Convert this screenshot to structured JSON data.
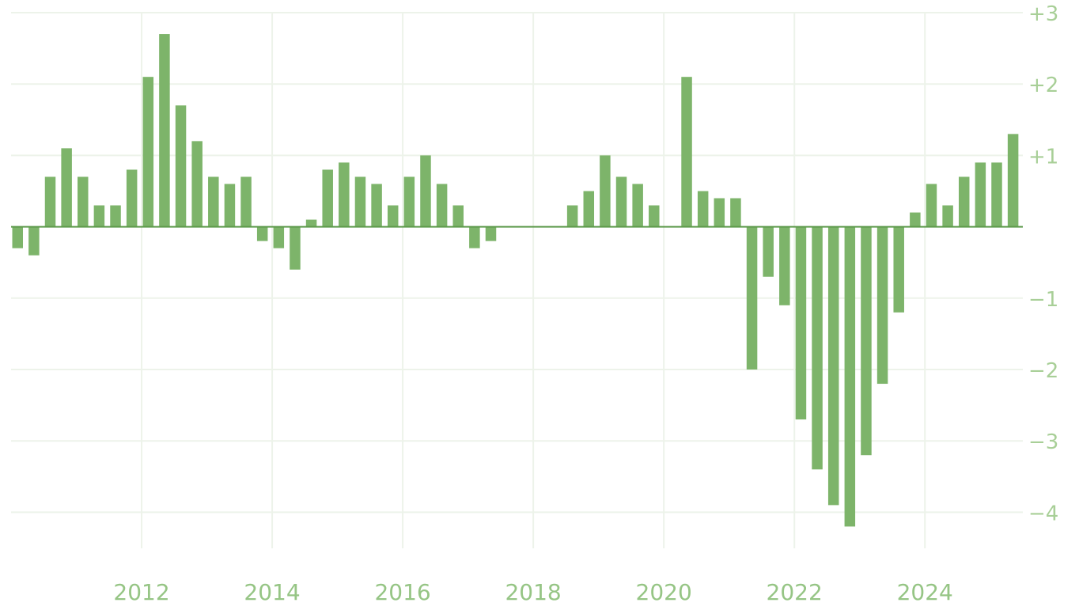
{
  "chart_data": {
    "type": "bar",
    "title": "",
    "xlabel": "",
    "ylabel": "",
    "bar_color": "#7db46a",
    "axis_color": "#5e9a4c",
    "grid": true,
    "ylim": [
      -4.5,
      3
    ],
    "y_ticks": [
      {
        "value": 3,
        "label": "+3"
      },
      {
        "value": 2,
        "label": "+2"
      },
      {
        "value": 1,
        "label": "+1"
      },
      {
        "value": -1,
        "label": "−1"
      },
      {
        "value": -2,
        "label": "−2"
      },
      {
        "value": -3,
        "label": "−3"
      },
      {
        "value": -4,
        "label": "−4"
      }
    ],
    "x_ticks": [
      {
        "value": 2012,
        "label": "2012"
      },
      {
        "value": 2014,
        "label": "2014"
      },
      {
        "value": 2016,
        "label": "2016"
      },
      {
        "value": 2018,
        "label": "2018"
      },
      {
        "value": 2020,
        "label": "2020"
      },
      {
        "value": 2022,
        "label": "2022"
      },
      {
        "value": 2024,
        "label": "2024"
      }
    ],
    "xlim": [
      2010,
      2025.5
    ],
    "x": [
      2010.1,
      2010.35,
      2010.6,
      2010.85,
      2011.1,
      2011.35,
      2011.6,
      2011.85,
      2012.1,
      2012.35,
      2012.6,
      2012.85,
      2013.1,
      2013.35,
      2013.6,
      2013.85,
      2014.1,
      2014.35,
      2014.6,
      2014.85,
      2015.1,
      2015.35,
      2015.6,
      2015.85,
      2016.1,
      2016.35,
      2016.6,
      2016.85,
      2017.1,
      2017.35,
      2017.6,
      2017.85,
      2018.1,
      2018.35,
      2018.6,
      2018.85,
      2019.1,
      2019.35,
      2019.6,
      2019.85,
      2020.1,
      2020.35,
      2020.6,
      2020.85,
      2021.1,
      2021.35,
      2021.6,
      2021.85,
      2022.1,
      2022.35,
      2022.6,
      2022.85,
      2023.1,
      2023.35,
      2023.6,
      2023.85,
      2024.1,
      2024.35,
      2024.6,
      2024.85,
      2025.1,
      2025.35
    ],
    "values": [
      -0.3,
      -0.4,
      0.7,
      1.1,
      0.7,
      0.3,
      0.3,
      0.8,
      2.1,
      2.7,
      1.7,
      1.2,
      0.7,
      0.6,
      0.7,
      -0.2,
      -0.3,
      -0.6,
      0.1,
      0.8,
      0.9,
      0.7,
      0.6,
      0.3,
      0.7,
      1.0,
      0.6,
      0.3,
      -0.3,
      -0.2,
      0,
      0,
      0,
      0,
      0.3,
      0.5,
      1.0,
      0.7,
      0.6,
      0.3,
      0,
      2.1,
      0.5,
      0.4,
      0.4,
      -2.0,
      -0.7,
      -1.1,
      -2.7,
      -3.4,
      -3.9,
      -4.2,
      -3.2,
      -2.2,
      -1.2,
      0.2,
      0.6,
      0.3,
      0.7,
      0.9,
      0.9,
      1.3
    ]
  }
}
